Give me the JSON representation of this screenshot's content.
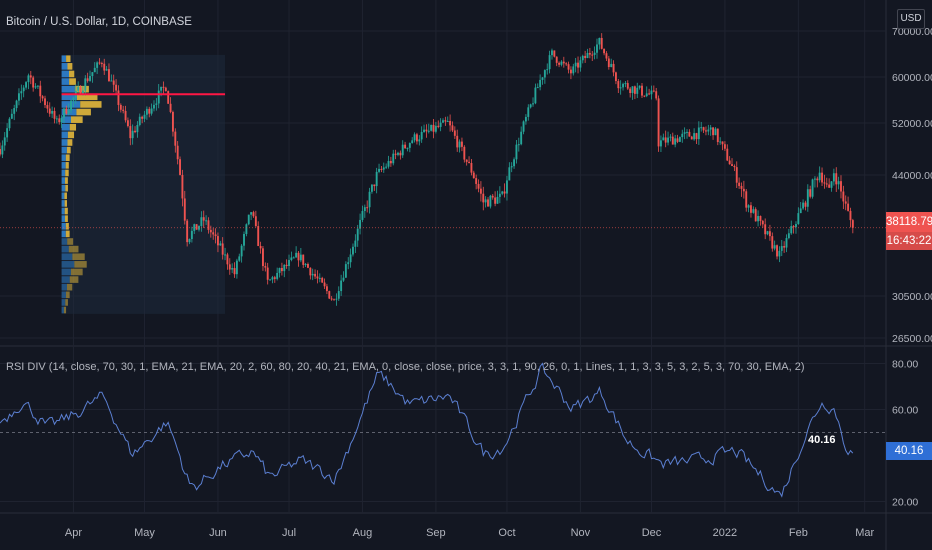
{
  "header": {
    "symbol_title": "Bitcoin / U.S. Dollar, 1D, COINBASE",
    "currency_button": "USD"
  },
  "indicator": {
    "title": "RSI DIV (14, close, 70, 30, 1, EMA, 21, EMA, 20, 2, 60, 80, 20, 40, 21, EMA, 0, close, close, price, 3, 3, 1, 90, 26, 0, 1, Lines, 1, 1, 3, 3, 5, 3, 2, 5, 3, 70, 30, EMA, 2)",
    "last_value_label": "40.16",
    "axis_value_label": "40.16"
  },
  "price_axis": {
    "last_price": "38118.79",
    "countdown": "16:43:22",
    "ticks": [
      "70000.00",
      "60000.00",
      "52000.00",
      "44000.00",
      "30500.00",
      "26500.00"
    ]
  },
  "rsi_axis": {
    "ticks": [
      "80.00",
      "60.00",
      "20.00"
    ]
  },
  "time_axis": {
    "ticks": [
      "Apr",
      "May",
      "Jun",
      "Jul",
      "Aug",
      "Sep",
      "Oct",
      "Nov",
      "Dec",
      "2022",
      "Feb",
      "Mar"
    ]
  },
  "colors": {
    "background": "#131722",
    "up": "#26a69a",
    "down": "#ef5350",
    "rsi_line": "#5b7fd1",
    "poc_line": "#ff1744",
    "profile_up": "#2d7dc8",
    "profile_down": "#d9b13b",
    "grid": "#1f2330"
  },
  "chart_data": [
    {
      "type": "candlestick",
      "title": "Bitcoin / U.S. Dollar, 1D, COINBASE",
      "xlabel": "",
      "ylabel": "",
      "x_range": [
        "2021-03-01",
        "2022-03-10"
      ],
      "ylim": [
        26500,
        70000
      ],
      "last_price": 38118.79,
      "point_of_control": 57000,
      "series": [
        {
          "name": "",
          "anchors": [
            [
              "2021-03-01",
              48000
            ],
            [
              "2021-03-13",
              60500
            ],
            [
              "2021-03-25",
              52000
            ],
            [
              "2021-04-13",
              63500
            ],
            [
              "2021-04-25",
              50000
            ],
            [
              "2021-05-10",
              58500
            ],
            [
              "2021-05-19",
              37000
            ],
            [
              "2021-05-26",
              39000
            ],
            [
              "2021-06-08",
              33000
            ],
            [
              "2021-06-15",
              40000
            ],
            [
              "2021-06-22",
              32000
            ],
            [
              "2021-07-05",
              35000
            ],
            [
              "2021-07-20",
              30000
            ],
            [
              "2021-08-07",
              44000
            ],
            [
              "2021-08-22",
              49500
            ],
            [
              "2021-09-06",
              52000
            ],
            [
              "2021-09-21",
              41000
            ],
            [
              "2021-09-29",
              41500
            ],
            [
              "2021-10-20",
              65000
            ],
            [
              "2021-10-28",
              61000
            ],
            [
              "2021-11-09",
              67500
            ],
            [
              "2021-11-17",
              59000
            ],
            [
              "2021-12-03",
              56500
            ],
            [
              "2021-12-04",
              49000
            ],
            [
              "2021-12-27",
              51000
            ],
            [
              "2022-01-10",
              41000
            ],
            [
              "2022-01-24",
              35000
            ],
            [
              "2022-02-10",
              44500
            ],
            [
              "2022-02-14",
              42000
            ],
            [
              "2022-02-16",
              44500
            ],
            [
              "2022-02-24",
              38118.79
            ]
          ]
        }
      ]
    },
    {
      "type": "line",
      "title": "RSI DIV (14, close, 70, 30, 1, EMA, 21, EMA, 20, 2, 60, 80, 20, 40, 21, EMA, 0, close, close, price, 3, 3, 1, 90, 26, 0, 1, Lines, 1, 1, 3, 3, 5, 3, 2, 5, 3, 70, 30, EMA, 2)",
      "xlabel": "",
      "ylabel": "",
      "ylim": [
        15,
        85
      ],
      "midline": 50,
      "series": [
        {
          "name": "",
          "anchors": [
            [
              "2021-03-01",
              55
            ],
            [
              "2021-03-10",
              64
            ],
            [
              "2021-03-20",
              52
            ],
            [
              "2021-04-01",
              58
            ],
            [
              "2021-04-13",
              66
            ],
            [
              "2021-04-25",
              40
            ],
            [
              "2021-05-10",
              55
            ],
            [
              "2021-05-20",
              25
            ],
            [
              "2021-06-01",
              35
            ],
            [
              "2021-06-15",
              42
            ],
            [
              "2021-06-22",
              30
            ],
            [
              "2021-07-05",
              38
            ],
            [
              "2021-07-20",
              30
            ],
            [
              "2021-08-07",
              76
            ],
            [
              "2021-08-20",
              62
            ],
            [
              "2021-09-06",
              66
            ],
            [
              "2021-09-21",
              40
            ],
            [
              "2021-09-29",
              44
            ],
            [
              "2021-10-15",
              78
            ],
            [
              "2021-10-28",
              60
            ],
            [
              "2021-11-09",
              68
            ],
            [
              "2021-11-20",
              46
            ],
            [
              "2021-12-05",
              36
            ],
            [
              "2021-12-20",
              38
            ],
            [
              "2022-01-05",
              42
            ],
            [
              "2022-01-24",
              22
            ],
            [
              "2022-02-01",
              44
            ],
            [
              "2022-02-10",
              64
            ],
            [
              "2022-02-16",
              60
            ],
            [
              "2022-02-20",
              44
            ],
            [
              "2022-02-24",
              40.16
            ]
          ]
        }
      ]
    }
  ]
}
